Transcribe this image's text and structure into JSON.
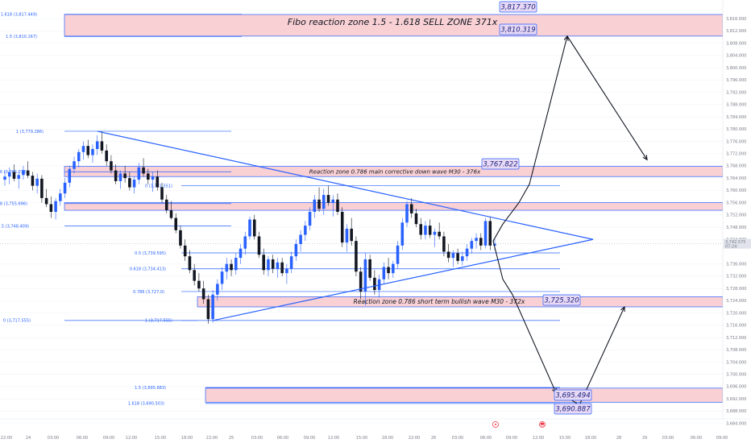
{
  "chart_data": {
    "type": "candlestick",
    "ylim": [
      3686.0,
      3820.0
    ],
    "y_ticks": [
      "3,816.000",
      "3,812.000",
      "3,808.000",
      "3,804.000",
      "3,800.000",
      "3,796.000",
      "3,792.000",
      "3,788.000",
      "3,784.000",
      "3,780.000",
      "3,776.000",
      "3,772.000",
      "3,768.000",
      "3,764.000",
      "3,760.000",
      "3,756.000",
      "3,752.000",
      "3,748.000",
      "3,744.000",
      "3,736.000",
      "3,732.000",
      "3,728.000",
      "3,724.000",
      "3,720.000",
      "3,716.000",
      "3,712.000",
      "3,708.000",
      "3,704.000",
      "3,700.000",
      "3,696.000",
      "3,692.000",
      "3,688.000",
      "3,684.000"
    ],
    "x_ticks": [
      "22:00",
      "24",
      "03:00",
      "06:00",
      "09:00",
      "12:00",
      "15:00",
      "18:00",
      "22:00",
      "25",
      "03:00",
      "06:00",
      "09:00",
      "12:00",
      "15:00",
      "18:00",
      "22:00",
      "26",
      "03:00",
      "06:00",
      "09:00",
      "12:00",
      "15:00",
      "18:00",
      "22:00",
      "28",
      "29",
      "03:00",
      "06:00",
      "09:00"
    ],
    "current_price": "3,742.575",
    "countdown": "07:24",
    "candles": [
      {
        "o": 3763.5,
        "h": 3766.5,
        "l": 3761.5,
        "c": 3764.5
      },
      {
        "o": 3764.5,
        "h": 3767.5,
        "l": 3762.0,
        "c": 3766.0
      },
      {
        "o": 3766.0,
        "h": 3768.5,
        "l": 3763.0,
        "c": 3763.8
      },
      {
        "o": 3763.8,
        "h": 3766.0,
        "l": 3760.5,
        "c": 3765.0
      },
      {
        "o": 3765.0,
        "h": 3768.0,
        "l": 3763.5,
        "c": 3766.5
      },
      {
        "o": 3766.5,
        "h": 3769.5,
        "l": 3764.0,
        "c": 3764.8
      },
      {
        "o": 3764.8,
        "h": 3766.0,
        "l": 3760.0,
        "c": 3761.5
      },
      {
        "o": 3761.5,
        "h": 3765.5,
        "l": 3759.0,
        "c": 3763.8
      },
      {
        "o": 3763.8,
        "h": 3765.0,
        "l": 3756.0,
        "c": 3757.5
      },
      {
        "o": 3757.5,
        "h": 3760.5,
        "l": 3754.5,
        "c": 3755.5
      },
      {
        "o": 3755.5,
        "h": 3758.0,
        "l": 3751.0,
        "c": 3753.0
      },
      {
        "o": 3753.0,
        "h": 3757.5,
        "l": 3750.5,
        "c": 3756.5
      },
      {
        "o": 3756.5,
        "h": 3760.5,
        "l": 3755.0,
        "c": 3759.0
      },
      {
        "o": 3759.0,
        "h": 3764.0,
        "l": 3757.5,
        "c": 3762.5
      },
      {
        "o": 3762.5,
        "h": 3768.0,
        "l": 3761.0,
        "c": 3767.0
      },
      {
        "o": 3767.0,
        "h": 3771.0,
        "l": 3765.5,
        "c": 3769.5
      },
      {
        "o": 3769.5,
        "h": 3773.5,
        "l": 3767.5,
        "c": 3772.5
      },
      {
        "o": 3772.5,
        "h": 3776.0,
        "l": 3770.0,
        "c": 3774.5
      },
      {
        "o": 3774.5,
        "h": 3776.5,
        "l": 3770.5,
        "c": 3771.5
      },
      {
        "o": 3771.5,
        "h": 3775.0,
        "l": 3769.0,
        "c": 3773.5
      },
      {
        "o": 3773.5,
        "h": 3778.0,
        "l": 3771.5,
        "c": 3776.0
      },
      {
        "o": 3776.0,
        "h": 3779.3,
        "l": 3772.0,
        "c": 3773.0
      },
      {
        "o": 3773.0,
        "h": 3775.0,
        "l": 3768.0,
        "c": 3769.5
      },
      {
        "o": 3769.5,
        "h": 3771.5,
        "l": 3765.5,
        "c": 3766.5
      },
      {
        "o": 3766.5,
        "h": 3768.5,
        "l": 3762.0,
        "c": 3763.0
      },
      {
        "o": 3763.0,
        "h": 3766.5,
        "l": 3760.5,
        "c": 3765.5
      },
      {
        "o": 3765.5,
        "h": 3768.0,
        "l": 3762.5,
        "c": 3764.0
      },
      {
        "o": 3764.0,
        "h": 3766.0,
        "l": 3760.0,
        "c": 3761.0
      },
      {
        "o": 3761.0,
        "h": 3764.5,
        "l": 3759.0,
        "c": 3763.5
      },
      {
        "o": 3763.5,
        "h": 3769.0,
        "l": 3762.0,
        "c": 3767.5
      },
      {
        "o": 3767.5,
        "h": 3770.5,
        "l": 3764.5,
        "c": 3765.5
      },
      {
        "o": 3765.5,
        "h": 3767.0,
        "l": 3762.0,
        "c": 3763.5
      },
      {
        "o": 3763.5,
        "h": 3766.0,
        "l": 3759.5,
        "c": 3764.5
      },
      {
        "o": 3764.5,
        "h": 3766.5,
        "l": 3760.0,
        "c": 3761.0
      },
      {
        "o": 3761.0,
        "h": 3762.5,
        "l": 3756.0,
        "c": 3757.0
      },
      {
        "o": 3757.0,
        "h": 3758.5,
        "l": 3752.5,
        "c": 3753.5
      },
      {
        "o": 3753.5,
        "h": 3756.5,
        "l": 3750.5,
        "c": 3751.0
      },
      {
        "o": 3751.0,
        "h": 3752.5,
        "l": 3746.0,
        "c": 3747.0
      },
      {
        "o": 3747.0,
        "h": 3748.5,
        "l": 3741.0,
        "c": 3742.0
      },
      {
        "o": 3742.0,
        "h": 3744.0,
        "l": 3737.0,
        "c": 3738.5
      },
      {
        "o": 3738.5,
        "h": 3740.5,
        "l": 3733.0,
        "c": 3734.0
      },
      {
        "o": 3734.0,
        "h": 3736.0,
        "l": 3729.0,
        "c": 3730.5
      },
      {
        "o": 3730.5,
        "h": 3733.0,
        "l": 3727.0,
        "c": 3728.0
      },
      {
        "o": 3728.0,
        "h": 3730.5,
        "l": 3723.0,
        "c": 3724.5
      },
      {
        "o": 3724.5,
        "h": 3726.0,
        "l": 3716.5,
        "c": 3718.0
      },
      {
        "o": 3718.0,
        "h": 3727.5,
        "l": 3716.8,
        "c": 3726.0
      },
      {
        "o": 3726.0,
        "h": 3731.0,
        "l": 3724.0,
        "c": 3729.5
      },
      {
        "o": 3729.5,
        "h": 3735.0,
        "l": 3727.5,
        "c": 3733.5
      },
      {
        "o": 3733.5,
        "h": 3738.0,
        "l": 3731.0,
        "c": 3736.0
      },
      {
        "o": 3736.0,
        "h": 3737.5,
        "l": 3732.0,
        "c": 3734.0
      },
      {
        "o": 3734.0,
        "h": 3739.5,
        "l": 3732.5,
        "c": 3738.0
      },
      {
        "o": 3738.0,
        "h": 3742.5,
        "l": 3736.0,
        "c": 3741.0
      },
      {
        "o": 3741.0,
        "h": 3746.5,
        "l": 3739.0,
        "c": 3745.0
      },
      {
        "o": 3745.0,
        "h": 3751.5,
        "l": 3744.0,
        "c": 3750.5
      },
      {
        "o": 3750.5,
        "h": 3752.0,
        "l": 3744.0,
        "c": 3745.0
      },
      {
        "o": 3745.0,
        "h": 3746.5,
        "l": 3738.0,
        "c": 3739.0
      },
      {
        "o": 3739.0,
        "h": 3741.0,
        "l": 3732.5,
        "c": 3734.0
      },
      {
        "o": 3734.0,
        "h": 3738.5,
        "l": 3732.0,
        "c": 3737.5
      },
      {
        "o": 3737.5,
        "h": 3739.0,
        "l": 3733.0,
        "c": 3734.5
      },
      {
        "o": 3734.5,
        "h": 3738.0,
        "l": 3731.5,
        "c": 3736.5
      },
      {
        "o": 3736.5,
        "h": 3738.0,
        "l": 3732.0,
        "c": 3733.0
      },
      {
        "o": 3733.0,
        "h": 3736.0,
        "l": 3729.5,
        "c": 3734.5
      },
      {
        "o": 3734.5,
        "h": 3740.0,
        "l": 3733.0,
        "c": 3738.5
      },
      {
        "o": 3738.5,
        "h": 3744.0,
        "l": 3737.0,
        "c": 3742.5
      },
      {
        "o": 3742.5,
        "h": 3747.0,
        "l": 3740.0,
        "c": 3745.5
      },
      {
        "o": 3745.5,
        "h": 3750.0,
        "l": 3743.5,
        "c": 3748.5
      },
      {
        "o": 3748.5,
        "h": 3754.5,
        "l": 3747.0,
        "c": 3753.0
      },
      {
        "o": 3753.0,
        "h": 3758.5,
        "l": 3751.0,
        "c": 3757.0
      },
      {
        "o": 3757.0,
        "h": 3761.0,
        "l": 3753.0,
        "c": 3754.0
      },
      {
        "o": 3754.0,
        "h": 3760.5,
        "l": 3752.0,
        "c": 3758.5
      },
      {
        "o": 3758.5,
        "h": 3761.5,
        "l": 3755.0,
        "c": 3756.0
      },
      {
        "o": 3756.0,
        "h": 3758.5,
        "l": 3751.5,
        "c": 3757.0
      },
      {
        "o": 3757.0,
        "h": 3759.0,
        "l": 3752.0,
        "c": 3753.0
      },
      {
        "o": 3753.0,
        "h": 3754.5,
        "l": 3741.5,
        "c": 3743.0
      },
      {
        "o": 3743.0,
        "h": 3749.0,
        "l": 3740.0,
        "c": 3747.5
      },
      {
        "o": 3747.5,
        "h": 3751.0,
        "l": 3742.0,
        "c": 3743.5
      },
      {
        "o": 3743.5,
        "h": 3745.0,
        "l": 3732.0,
        "c": 3733.5
      },
      {
        "o": 3733.5,
        "h": 3735.0,
        "l": 3724.5,
        "c": 3727.0
      },
      {
        "o": 3727.0,
        "h": 3739.5,
        "l": 3722.5,
        "c": 3737.5
      },
      {
        "o": 3737.5,
        "h": 3739.0,
        "l": 3730.5,
        "c": 3731.5
      },
      {
        "o": 3731.5,
        "h": 3734.0,
        "l": 3726.0,
        "c": 3727.5
      },
      {
        "o": 3727.5,
        "h": 3732.5,
        "l": 3725.0,
        "c": 3731.0
      },
      {
        "o": 3731.0,
        "h": 3736.5,
        "l": 3729.5,
        "c": 3735.0
      },
      {
        "o": 3735.0,
        "h": 3738.0,
        "l": 3731.0,
        "c": 3733.0
      },
      {
        "o": 3733.0,
        "h": 3737.0,
        "l": 3731.5,
        "c": 3736.0
      },
      {
        "o": 3736.0,
        "h": 3743.5,
        "l": 3734.5,
        "c": 3742.0
      },
      {
        "o": 3742.0,
        "h": 3751.0,
        "l": 3740.5,
        "c": 3749.5
      },
      {
        "o": 3749.5,
        "h": 3756.5,
        "l": 3748.0,
        "c": 3755.5
      },
      {
        "o": 3755.5,
        "h": 3757.5,
        "l": 3751.0,
        "c": 3752.5
      },
      {
        "o": 3752.5,
        "h": 3754.0,
        "l": 3748.0,
        "c": 3749.0
      },
      {
        "o": 3749.0,
        "h": 3751.0,
        "l": 3744.0,
        "c": 3745.5
      },
      {
        "o": 3745.5,
        "h": 3750.0,
        "l": 3744.0,
        "c": 3748.5
      },
      {
        "o": 3748.5,
        "h": 3750.5,
        "l": 3744.5,
        "c": 3745.5
      },
      {
        "o": 3745.5,
        "h": 3747.5,
        "l": 3741.5,
        "c": 3746.5
      },
      {
        "o": 3746.5,
        "h": 3749.5,
        "l": 3744.0,
        "c": 3745.0
      },
      {
        "o": 3745.0,
        "h": 3746.5,
        "l": 3738.5,
        "c": 3740.0
      },
      {
        "o": 3740.0,
        "h": 3742.5,
        "l": 3736.5,
        "c": 3738.0
      },
      {
        "o": 3738.0,
        "h": 3740.5,
        "l": 3735.0,
        "c": 3739.5
      },
      {
        "o": 3739.5,
        "h": 3741.0,
        "l": 3736.0,
        "c": 3737.0
      },
      {
        "o": 3737.0,
        "h": 3740.0,
        "l": 3735.5,
        "c": 3738.5
      },
      {
        "o": 3738.5,
        "h": 3742.5,
        "l": 3737.0,
        "c": 3741.0
      },
      {
        "o": 3741.0,
        "h": 3744.5,
        "l": 3739.5,
        "c": 3743.5
      },
      {
        "o": 3743.5,
        "h": 3746.0,
        "l": 3741.0,
        "c": 3744.5
      },
      {
        "o": 3744.5,
        "h": 3746.0,
        "l": 3740.5,
        "c": 3742.0
      },
      {
        "o": 3742.0,
        "h": 3751.0,
        "l": 3741.0,
        "c": 3750.0
      },
      {
        "o": 3750.0,
        "h": 3751.5,
        "l": 3740.5,
        "c": 3742.0
      },
      {
        "o": 3742.0,
        "h": 3744.0,
        "l": 3740.5,
        "c": 3742.6
      }
    ],
    "zones": [
      {
        "top": 3817.37,
        "bottom": 3810.319,
        "label": "Fibo reaction zone 1.5 - 1.618 SELL ZONE 371x",
        "price_labels": [
          "3,817.370",
          "3,810.319"
        ]
      },
      {
        "top": 3767.822,
        "bottom": 3764.5,
        "label": "Reaction zone 0.786 main corrective down wave M30 - 376x",
        "price_labels": [
          "3,767.822"
        ]
      },
      {
        "top": 3756.0,
        "bottom": 3753.5,
        "label": "",
        "price_labels": []
      },
      {
        "top": 3725.32,
        "bottom": 3722.0,
        "label": "Reaction zone 0.786 short term bullish wave M30 - 372x",
        "price_labels": [
          "3,725.320"
        ]
      },
      {
        "top": 3695.494,
        "bottom": 3690.887,
        "label": "",
        "price_labels": [
          "3,695.494",
          "3,690.887"
        ]
      }
    ],
    "fib_levels": [
      {
        "label": "1.618 (3,817.449)",
        "price": 3817.449
      },
      {
        "label": "1.5 (3,810.167)",
        "price": 3810.167
      },
      {
        "label": "1 (3,779.286)",
        "price": 3779.286
      },
      {
        "label": "0.786 (3,766.073)",
        "price": 3766.073
      },
      {
        "label": "0.618 (3,755.696)",
        "price": 3755.696
      },
      {
        "label": "0.5 (3,748.409)",
        "price": 3748.409
      },
      {
        "label": "0 (3,717.555)",
        "price": 3717.555
      },
      {
        "label": "0 (3,761.551)",
        "price": 3761.551
      },
      {
        "label": "0.5 (3,739.595)",
        "price": 3739.595
      },
      {
        "label": "0.618 (3,734.413)",
        "price": 3734.413
      },
      {
        "label": "0.786 (3,727.0)",
        "price": 3727.0
      },
      {
        "label": "1 (3,717.555)",
        "price": 3717.555
      },
      {
        "label": "1.5 (3,695.683)",
        "price": 3695.683
      },
      {
        "label": "1.618 (3,690.503)",
        "price": 3690.503
      }
    ],
    "triangle_apex_price": 3744.0,
    "projection_prices": [
      3749,
      3766,
      3810.3,
      3770,
      3726,
      3694,
      3695,
      3725
    ]
  },
  "colors": {
    "bull": "#2962ff",
    "bear": "#131722",
    "zone_fill": "#f8c8cc",
    "zone_border": "#2962ff",
    "fib": "#2962ff",
    "axis_text": "#787b86",
    "price_box_fill": "#e8d9f5"
  }
}
